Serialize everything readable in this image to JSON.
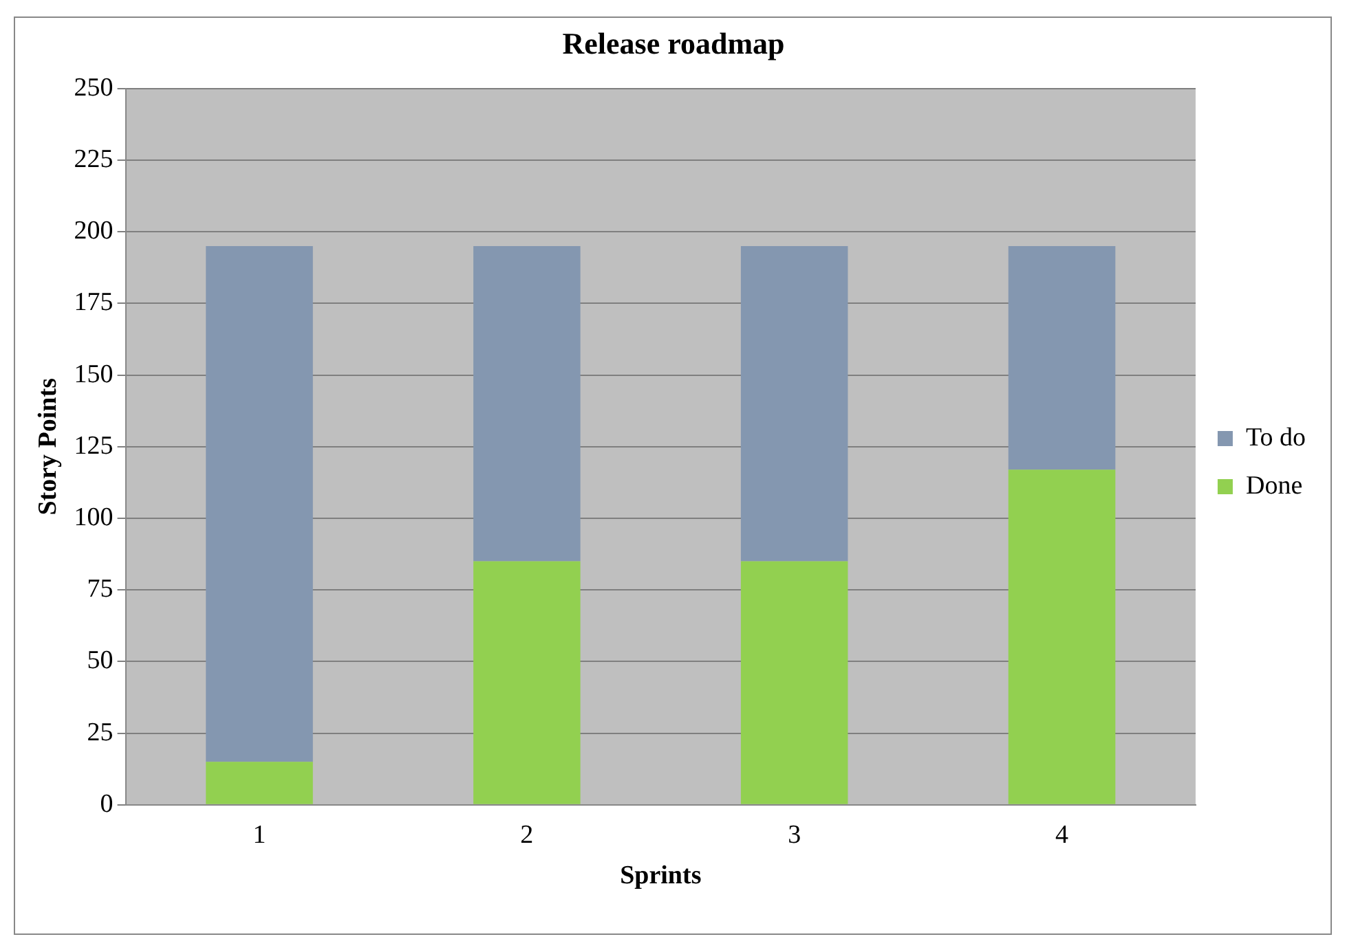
{
  "chart_data": {
    "type": "bar",
    "title": "Release roadmap",
    "xlabel": "Sprints",
    "ylabel": "Story Points",
    "categories": [
      "1",
      "2",
      "3",
      "4"
    ],
    "stacked": true,
    "series": [
      {
        "name": "Done",
        "color": "#92d050",
        "values": [
          15,
          85,
          85,
          117
        ]
      },
      {
        "name": "To do",
        "color": "#8497b0",
        "values": [
          180,
          110,
          110,
          78
        ]
      }
    ],
    "ylim": [
      0,
      250
    ],
    "yticks": [
      0,
      25,
      50,
      75,
      100,
      125,
      150,
      175,
      200,
      225,
      250
    ],
    "grid": "y",
    "legend": "right"
  }
}
